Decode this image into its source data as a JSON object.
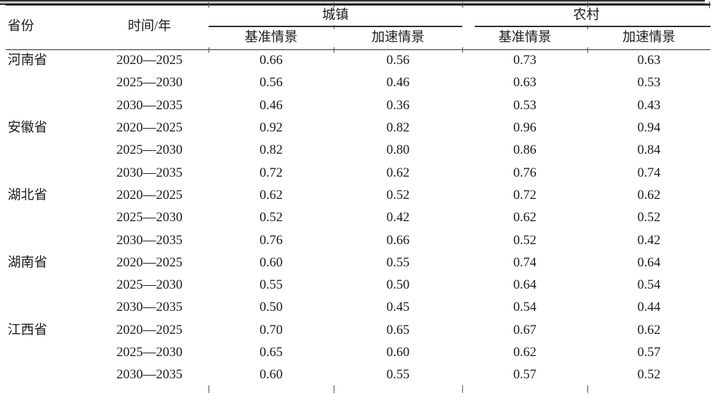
{
  "page": {
    "background_color": "#ffffff",
    "text_color": "#1b1b1b",
    "rule_color": "#2b2b2b"
  },
  "table": {
    "header": {
      "province": "省份",
      "time": "时间/年",
      "group_urban": "城镇",
      "group_rural": "农村",
      "sub_baseline": "基准情景",
      "sub_accelerated": "加速情景"
    },
    "provinces": [
      {
        "name": "河南省",
        "periods": [
          {
            "period": "2020—2025",
            "urban_baseline": "0.66",
            "urban_accelerated": "0.56",
            "rural_baseline": "0.73",
            "rural_accelerated": "0.63"
          },
          {
            "period": "2025—2030",
            "urban_baseline": "0.56",
            "urban_accelerated": "0.46",
            "rural_baseline": "0.63",
            "rural_accelerated": "0.53"
          },
          {
            "period": "2030—2035",
            "urban_baseline": "0.46",
            "urban_accelerated": "0.36",
            "rural_baseline": "0.53",
            "rural_accelerated": "0.43"
          }
        ]
      },
      {
        "name": "安徽省",
        "periods": [
          {
            "period": "2020—2025",
            "urban_baseline": "0.92",
            "urban_accelerated": "0.82",
            "rural_baseline": "0.96",
            "rural_accelerated": "0.94"
          },
          {
            "period": "2025—2030",
            "urban_baseline": "0.82",
            "urban_accelerated": "0.80",
            "rural_baseline": "0.86",
            "rural_accelerated": "0.84"
          },
          {
            "period": "2030—2035",
            "urban_baseline": "0.72",
            "urban_accelerated": "0.62",
            "rural_baseline": "0.76",
            "rural_accelerated": "0.74"
          }
        ]
      },
      {
        "name": "湖北省",
        "periods": [
          {
            "period": "2020—2025",
            "urban_baseline": "0.62",
            "urban_accelerated": "0.52",
            "rural_baseline": "0.72",
            "rural_accelerated": "0.62"
          },
          {
            "period": "2025—2030",
            "urban_baseline": "0.52",
            "urban_accelerated": "0.42",
            "rural_baseline": "0.62",
            "rural_accelerated": "0.52"
          },
          {
            "period": "2030—2035",
            "urban_baseline": "0.76",
            "urban_accelerated": "0.66",
            "rural_baseline": "0.52",
            "rural_accelerated": "0.42"
          }
        ]
      },
      {
        "name": "湖南省",
        "periods": [
          {
            "period": "2020—2025",
            "urban_baseline": "0.60",
            "urban_accelerated": "0.55",
            "rural_baseline": "0.74",
            "rural_accelerated": "0.64"
          },
          {
            "period": "2025—2030",
            "urban_baseline": "0.55",
            "urban_accelerated": "0.50",
            "rural_baseline": "0.64",
            "rural_accelerated": "0.54"
          },
          {
            "period": "2030—2035",
            "urban_baseline": "0.50",
            "urban_accelerated": "0.45",
            "rural_baseline": "0.54",
            "rural_accelerated": "0.44"
          }
        ]
      },
      {
        "name": "江西省",
        "periods": [
          {
            "period": "2020—2025",
            "urban_baseline": "0.70",
            "urban_accelerated": "0.65",
            "rural_baseline": "0.67",
            "rural_accelerated": "0.62"
          },
          {
            "period": "2025—2030",
            "urban_baseline": "0.65",
            "urban_accelerated": "0.60",
            "rural_baseline": "0.62",
            "rural_accelerated": "0.57"
          },
          {
            "period": "2030—2035",
            "urban_baseline": "0.60",
            "urban_accelerated": "0.55",
            "rural_baseline": "0.57",
            "rural_accelerated": "0.52"
          }
        ]
      }
    ]
  }
}
